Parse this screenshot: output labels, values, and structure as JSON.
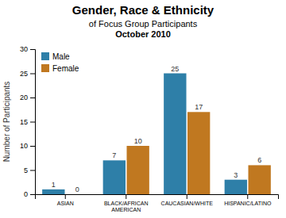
{
  "chart_data": {
    "type": "bar",
    "title": "Gender, Race & Ethnicity",
    "subtitle": [
      "of Focus Group Participants",
      "October 2010"
    ],
    "categories": [
      "ASIAN",
      "BLACK/AFRICAN\nAMERICAN",
      "CAUCASIAN/WHITE",
      "HISPANIC/LATINO"
    ],
    "series": [
      {
        "name": "Male",
        "color": "#2E7FA8",
        "values": [
          1,
          7,
          25,
          3
        ]
      },
      {
        "name": "Female",
        "color": "#C07820",
        "values": [
          0,
          10,
          17,
          6
        ]
      }
    ],
    "y_label": "Number of Participants",
    "ylim": [
      0,
      30
    ],
    "yticks": [
      0,
      5,
      10,
      15,
      20,
      25,
      30
    ],
    "data_labels": true,
    "legend": "upper left",
    "grid": false
  }
}
